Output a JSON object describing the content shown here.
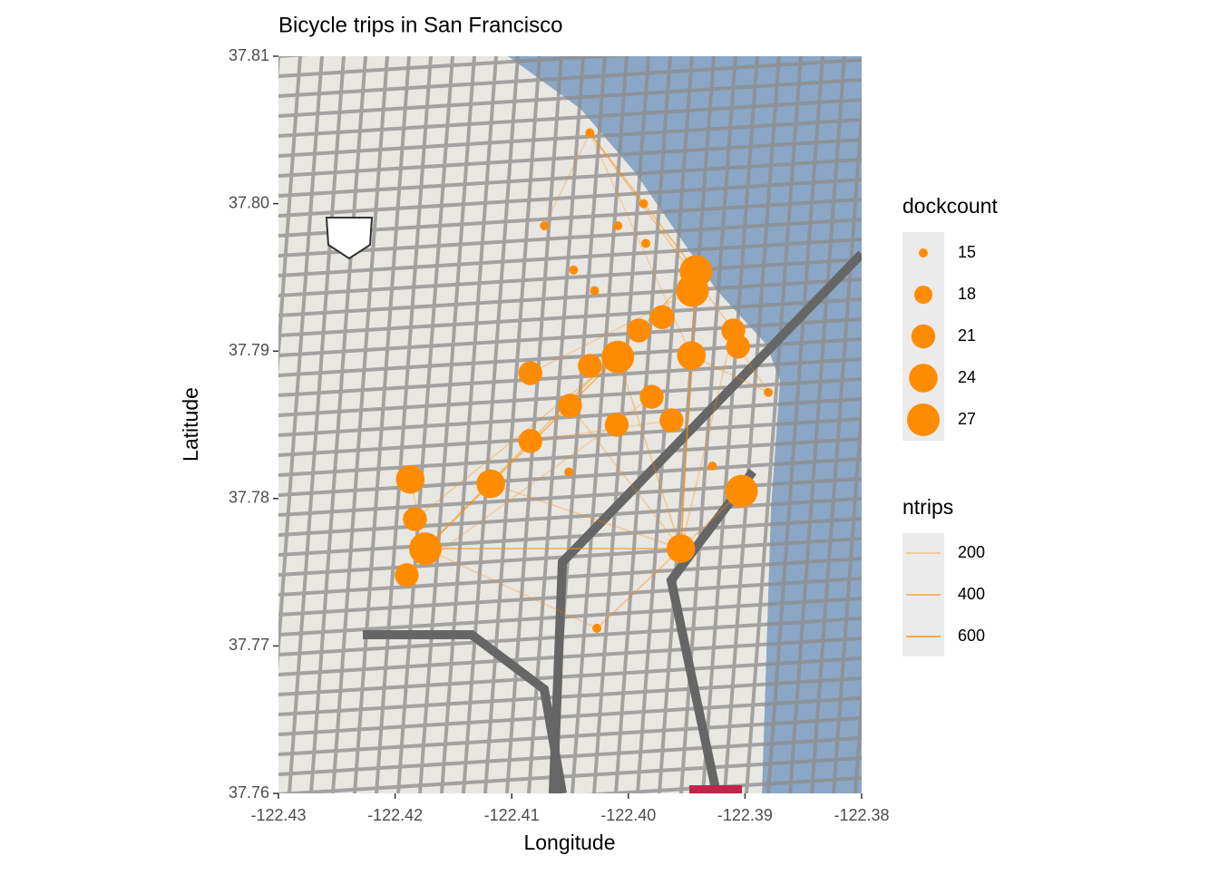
{
  "chart_data": {
    "type": "map-scatter",
    "title": "Bicycle trips in San Francisco",
    "xlabel": "Longitude",
    "ylabel": "Latitude",
    "xlim": [
      -122.43,
      -122.38
    ],
    "ylim": [
      37.76,
      37.81
    ],
    "xticks": [
      -122.43,
      -122.42,
      -122.41,
      {
        "value": -122.4,
        "label": "-122.40"
      },
      -122.39,
      -122.38
    ],
    "yticks": [
      37.76,
      37.77,
      37.78,
      37.79,
      {
        "value": 37.8,
        "label": "37.80"
      },
      37.81
    ],
    "color": "#ff8c00",
    "stations": {
      "x": [
        -122.4033,
        -122.4072,
        -122.4009,
        -122.3987,
        -122.3985,
        -122.4047,
        -122.4029,
        -122.3942,
        -122.3945,
        -122.3971,
        -122.3991,
        -122.391,
        -122.3906,
        -122.4009,
        -122.3946,
        -122.4033,
        -122.4084,
        -122.398,
        -122.405,
        -122.3963,
        -122.401,
        -122.4084,
        -122.388,
        -122.4187,
        -122.4118,
        -122.3903,
        -122.4183,
        -122.4174,
        -122.3955,
        -122.419,
        -122.4027,
        -122.4051,
        -122.3928
      ],
      "y": [
        37.8048,
        37.7985,
        37.7985,
        37.8,
        37.7973,
        37.7955,
        37.7941,
        37.7954,
        37.7941,
        37.7923,
        37.7914,
        37.7914,
        37.7903,
        37.7896,
        37.7897,
        37.789,
        37.7885,
        37.7869,
        37.7863,
        37.7853,
        37.785,
        37.7839,
        37.7872,
        37.7813,
        37.781,
        37.7805,
        37.7786,
        37.7766,
        37.7766,
        37.7748,
        37.7712,
        37.7818,
        37.7822
      ],
      "dockcount": [
        15,
        15,
        15,
        15,
        15,
        15,
        15,
        27,
        27,
        21,
        21,
        21,
        21,
        27,
        24,
        21,
        21,
        21,
        21,
        21,
        21,
        21,
        15,
        24,
        24,
        27,
        21,
        27,
        24,
        21,
        15,
        15,
        15
      ]
    },
    "trips": [
      {
        "x": [
          -122.3955,
          -122.4174
        ],
        "y": [
          37.7766,
          37.7766
        ],
        "ntrips": 500
      },
      {
        "x": [
          -122.3955,
          -122.3942
        ],
        "y": [
          37.7766,
          37.7954
        ],
        "ntrips": 400
      },
      {
        "x": [
          -122.3955,
          -122.3946
        ],
        "y": [
          37.7766,
          37.7897
        ],
        "ntrips": 300
      },
      {
        "x": [
          -122.3955,
          -122.4027
        ],
        "y": [
          37.7766,
          37.7712
        ],
        "ntrips": 300
      },
      {
        "x": [
          -122.3955,
          -122.4009
        ],
        "y": [
          37.7766,
          37.7896
        ],
        "ntrips": 250
      },
      {
        "x": [
          -122.3955,
          -122.4118
        ],
        "y": [
          37.7766,
          37.781
        ],
        "ntrips": 200
      },
      {
        "x": [
          -122.3955,
          -122.3903
        ],
        "y": [
          37.7766,
          37.7805
        ],
        "ntrips": 250
      },
      {
        "x": [
          -122.3955,
          -122.405
        ],
        "y": [
          37.7766,
          37.7863
        ],
        "ntrips": 150
      },
      {
        "x": [
          -122.3955,
          -122.391
        ],
        "y": [
          37.7766,
          37.7914
        ],
        "ntrips": 200
      },
      {
        "x": [
          -122.4174,
          -122.4009
        ],
        "y": [
          37.7766,
          37.7896
        ],
        "ntrips": 450
      },
      {
        "x": [
          -122.4174,
          -122.3942
        ],
        "y": [
          37.7766,
          37.7954
        ],
        "ntrips": 300
      },
      {
        "x": [
          -122.4187,
          -122.4174
        ],
        "y": [
          37.7813,
          37.7766
        ],
        "ntrips": 150
      },
      {
        "x": [
          -122.4033,
          -122.3942
        ],
        "y": [
          37.8048,
          37.7954
        ],
        "ntrips": 350
      },
      {
        "x": [
          -122.4033,
          -122.391
        ],
        "y": [
          37.8048,
          37.7914
        ],
        "ntrips": 250
      },
      {
        "x": [
          -122.4033,
          -122.4072
        ],
        "y": [
          37.8048,
          37.7985
        ],
        "ntrips": 150
      },
      {
        "x": [
          -122.4033,
          -122.3946
        ],
        "y": [
          37.8048,
          37.7897
        ],
        "ntrips": 150
      },
      {
        "x": [
          -122.388,
          -122.3946
        ],
        "y": [
          37.7872,
          37.7897
        ],
        "ntrips": 200
      },
      {
        "x": [
          -122.388,
          -122.3906
        ],
        "y": [
          37.7872,
          37.7903
        ],
        "ntrips": 200
      },
      {
        "x": [
          -122.4027,
          -122.4174
        ],
        "y": [
          37.7712,
          37.7766
        ],
        "ntrips": 150
      },
      {
        "x": [
          -122.4183,
          -122.4009
        ],
        "y": [
          37.7786,
          37.7896
        ],
        "ntrips": 200
      },
      {
        "x": [
          -122.4084,
          -122.3963
        ],
        "y": [
          37.7839,
          37.7853
        ],
        "ntrips": 150
      },
      {
        "x": [
          -122.4084,
          -122.3945
        ],
        "y": [
          37.7885,
          37.7941
        ],
        "ntrips": 150
      },
      {
        "x": [
          -122.419,
          -122.398
        ],
        "y": [
          37.7748,
          37.7869
        ],
        "ntrips": 150
      }
    ],
    "size_legend": {
      "title": "dockcount",
      "breaks": [
        15,
        18,
        21,
        24,
        27
      ]
    },
    "alpha_legend": {
      "title": "ntrips",
      "breaks": [
        200,
        400,
        600
      ]
    }
  }
}
